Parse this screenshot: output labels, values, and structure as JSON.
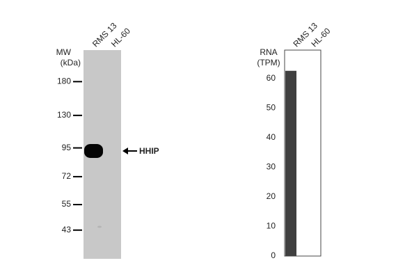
{
  "blot": {
    "type": "western-blot",
    "ylabel": [
      "MW",
      "(kDa)"
    ],
    "lanes": [
      "RMS 13",
      "HL-60"
    ],
    "log": true,
    "ylim": [
      32.6,
      244
    ],
    "yticks": [
      180,
      130,
      95,
      72,
      55,
      43
    ],
    "band_label": "HHIP",
    "lane_color": "#c8c8c8"
  },
  "chart_data": {
    "type": "bar",
    "ylabel": [
      "RNA",
      "(TPM)"
    ],
    "categories": [
      "RMS 13",
      "HL-60"
    ],
    "values": [
      62.6,
      0
    ],
    "color": "#404040",
    "ylim": [
      0,
      69.6
    ],
    "yticks": [
      0,
      10,
      20,
      30,
      40,
      50,
      60
    ],
    "grid": false
  }
}
